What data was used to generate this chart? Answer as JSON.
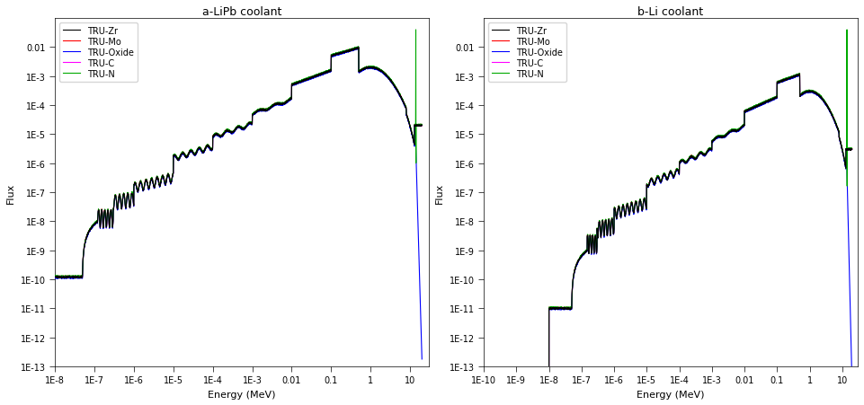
{
  "title_a": "a-LiPb coolant",
  "title_b": "b-Li coolant",
  "xlabel": "Energy (MeV)",
  "ylabel": "Flux",
  "colors": {
    "TRU-Zr": "#000000",
    "TRU-Mo": "#ff0000",
    "TRU-Oxide": "#0000ff",
    "TRU-C": "#ff00ff",
    "TRU-N": "#00aa00"
  },
  "legend_labels": [
    "TRU-Zr",
    "TRU-Mo",
    "TRU-Oxide",
    "TRU-C",
    "TRU-N"
  ],
  "ylim": [
    1e-13,
    0.1
  ],
  "xlim_a": [
    1e-08,
    30
  ],
  "xlim_b": [
    1e-10,
    30
  ],
  "yticks": [
    1e-13,
    1e-12,
    1e-11,
    1e-10,
    1e-09,
    1e-08,
    1e-07,
    1e-06,
    1e-05,
    0.0001,
    0.001,
    0.01
  ],
  "xticks_a": [
    1e-08,
    1e-07,
    1e-06,
    1e-05,
    0.0001,
    0.001,
    0.01,
    0.1,
    1,
    10
  ],
  "xticks_b": [
    1e-10,
    1e-09,
    1e-08,
    1e-07,
    1e-06,
    1e-05,
    0.0001,
    0.001,
    0.01,
    0.1,
    1,
    10
  ],
  "xtick_labels_a": [
    "1E-8",
    "1E-7",
    "1E-6",
    "1E-5",
    "1E-4",
    "1E-3",
    "0.01",
    "0.1",
    "1",
    "10"
  ],
  "xtick_labels_b": [
    "1E-10",
    "1E-9",
    "1E-8",
    "1E-7",
    "1E-6",
    "1E-5",
    "1E-4",
    "1E-3",
    "0.01",
    "0.1",
    "1",
    "10"
  ],
  "ytick_labels": [
    "1E-13",
    "1E-12",
    "1E-11",
    "1E-10",
    "1E-9",
    "1E-8",
    "1E-7",
    "1E-6",
    "1E-5",
    "1E-4",
    "1E-3",
    "0.01"
  ]
}
